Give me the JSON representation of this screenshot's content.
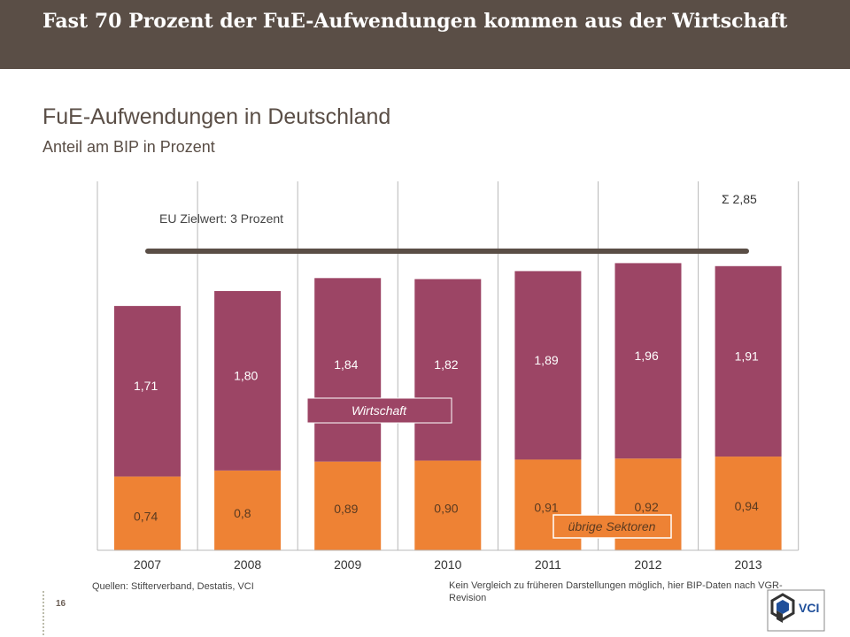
{
  "header": {
    "title": "Fast 70 Prozent der FuE-Aufwendungen kommen aus der Wirtschaft"
  },
  "chart_data": {
    "type": "bar",
    "stacked": true,
    "title": "FuE-Aufwendungen in Deutschland",
    "subtitle": "Anteil am BIP in Prozent",
    "categories": [
      "2007",
      "2008",
      "2009",
      "2010",
      "2011",
      "2012",
      "2013"
    ],
    "series": [
      {
        "name": "übrige Sektoren",
        "values": [
          0.74,
          0.8,
          0.89,
          0.9,
          0.91,
          0.92,
          0.94
        ],
        "labels": [
          "0,74",
          "0,8",
          "0,89",
          "0,90",
          "0,91",
          "0,92",
          "0,94"
        ],
        "color": "#ee8234"
      },
      {
        "name": "Wirtschaft",
        "values": [
          1.71,
          1.8,
          1.84,
          1.82,
          1.89,
          1.96,
          1.91
        ],
        "labels": [
          "1,71",
          "1,80",
          "1,84",
          "1,82",
          "1,89",
          "1,96",
          "1,91"
        ],
        "color": "#9c4565"
      }
    ],
    "target": {
      "label": "EU Zielwert: 3 Prozent",
      "value": 3,
      "color": "#5a4e46"
    },
    "total_annotation": "Σ 2,85",
    "ylim": [
      0,
      3.7
    ],
    "grid": true
  },
  "footer": {
    "source": "Quellen: Stifterverband, Destatis, VCI",
    "note": "Kein Vergleich zu früheren Darstellungen möglich, hier BIP-Daten nach VGR-Revision",
    "page_number": "16",
    "logo_text": "VCI"
  }
}
